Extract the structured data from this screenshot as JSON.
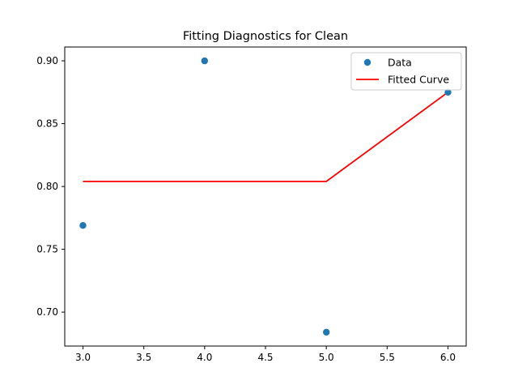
{
  "chart_data": {
    "type": "scatter",
    "title": "Fitting Diagnostics for Clean",
    "xlabel": "",
    "ylabel": "",
    "xlim": [
      2.85,
      6.15
    ],
    "ylim": [
      0.673,
      0.911
    ],
    "xticks": [
      "3.0",
      "3.5",
      "4.0",
      "4.5",
      "5.0",
      "5.5",
      "6.0"
    ],
    "yticks": [
      "0.70",
      "0.75",
      "0.80",
      "0.85",
      "0.90"
    ],
    "grid": false,
    "legend_position": "top-right",
    "series": [
      {
        "name": "Data",
        "kind": "scatter",
        "color": "#1f77b4",
        "x": [
          3.0,
          4.0,
          5.0,
          6.0
        ],
        "y": [
          0.769,
          0.9,
          0.684,
          0.875
        ]
      },
      {
        "name": "Fitted Curve",
        "kind": "line",
        "color": "#ff0000",
        "x": [
          3.0,
          4.0,
          5.0,
          6.0
        ],
        "y": [
          0.804,
          0.804,
          0.804,
          0.875
        ]
      }
    ]
  }
}
